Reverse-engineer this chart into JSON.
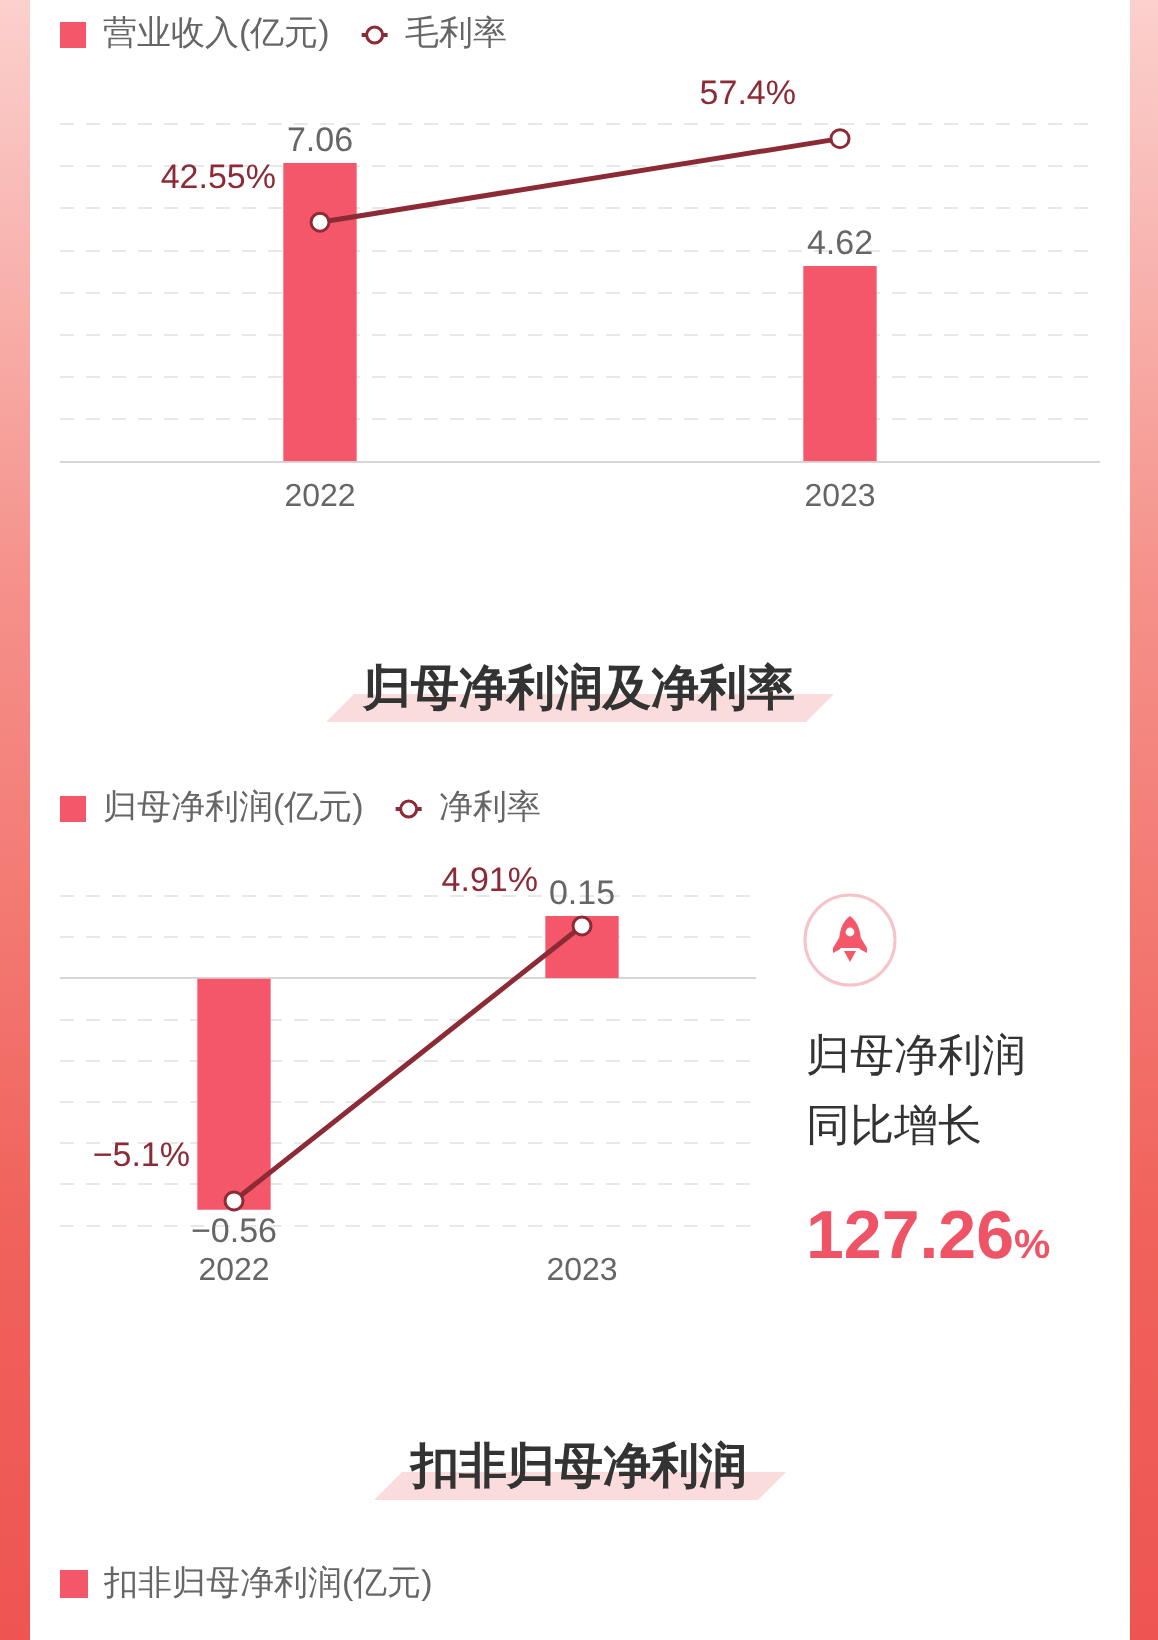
{
  "chart_data": [
    {
      "type": "bar",
      "categories": [
        "2022",
        "2023"
      ],
      "series": [
        {
          "name": "营业收入(亿元)",
          "type": "bar",
          "color": "#f45769",
          "values": [
            7.06,
            4.62
          ],
          "value_labels": [
            "7.06",
            "4.62"
          ]
        },
        {
          "name": "毛利率",
          "type": "line",
          "axis": "y2",
          "color": "#8c2a36",
          "values": [
            42.55,
            57.4
          ],
          "value_labels": [
            "42.55%",
            "57.4%"
          ]
        }
      ],
      "ylim": [
        0,
        8
      ],
      "yticks": [
        {
          "value": 0,
          "label": null
        },
        {
          "value": 1,
          "label": null
        },
        {
          "value": 2,
          "label": null
        },
        {
          "value": 3,
          "label": null
        },
        {
          "value": 4,
          "label": null
        },
        {
          "value": 5,
          "label": null
        },
        {
          "value": 6,
          "label": null
        },
        {
          "value": 7,
          "label": null
        },
        {
          "value": 8,
          "label": null
        }
      ],
      "y2lim": [
        0,
        60
      ],
      "grid": "y",
      "legend": "top left",
      "tick_labels": "x",
      "marker": "circle"
    },
    {
      "type": "bar",
      "title": "归母净利润及净利率",
      "categories": [
        "2022",
        "2023"
      ],
      "series": [
        {
          "name": "归母净利润(亿元)",
          "type": "bar",
          "color": "#f45769",
          "values": [
            -0.56,
            0.15
          ],
          "value_labels": [
            "−0.56",
            "0.15"
          ]
        },
        {
          "name": "净利率",
          "type": "line",
          "axis": "y2",
          "color": "#8c2a36",
          "values": [
            -5.1,
            4.91
          ],
          "value_labels": [
            "−5.1%",
            "4.91%"
          ]
        }
      ],
      "ylim": [
        -0.6,
        0.2
      ],
      "yticks": [
        {
          "value": -0.6,
          "label": null
        },
        {
          "value": -0.5,
          "label": null
        },
        {
          "value": -0.4,
          "label": null
        },
        {
          "value": -0.3,
          "label": null
        },
        {
          "value": -0.2,
          "label": null
        },
        {
          "value": -0.1,
          "label": null
        },
        {
          "value": 0,
          "label": null
        },
        {
          "value": 0.1,
          "label": null
        },
        {
          "value": 0.2,
          "label": null
        }
      ],
      "y2lim": [
        -6,
        6
      ],
      "grid": "y",
      "legend": "top left",
      "tick_labels": "x",
      "marker": "circle"
    },
    {
      "type": "other",
      "annotations": [
        "归母净利润",
        "同比增长",
        "127.26%"
      ]
    },
    {
      "type": "other",
      "title": "扣非归母净利润",
      "annotations": [
        "扣非归母净利润(亿元)"
      ]
    }
  ]
}
